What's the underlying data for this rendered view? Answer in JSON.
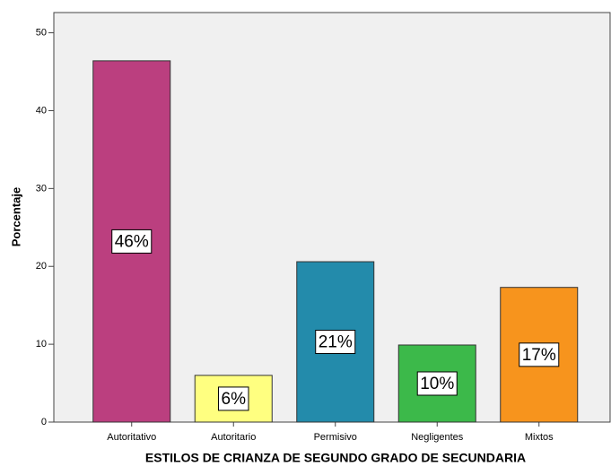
{
  "chart_data": {
    "type": "bar",
    "x_label": "ESTILOS DE CRIANZA DE SEGUNDO GRADO DE SECUNDARIA",
    "y_label": "Porcentaje",
    "categories": [
      "Autoritativo",
      "Autoritario",
      "Permisivo",
      "Negligentes",
      "Mixtos"
    ],
    "values": [
      46.4,
      6.0,
      20.6,
      9.9,
      17.3
    ],
    "value_labels": [
      "46%",
      "6%",
      "21%",
      "10%",
      "17%"
    ],
    "colors": [
      "#bb3f7f",
      "#ffff80",
      "#238bab",
      "#3cb94a",
      "#f7941d"
    ],
    "ylim": [
      0,
      52.6
    ],
    "yticks": [
      0,
      10,
      20,
      30,
      40,
      50
    ]
  }
}
